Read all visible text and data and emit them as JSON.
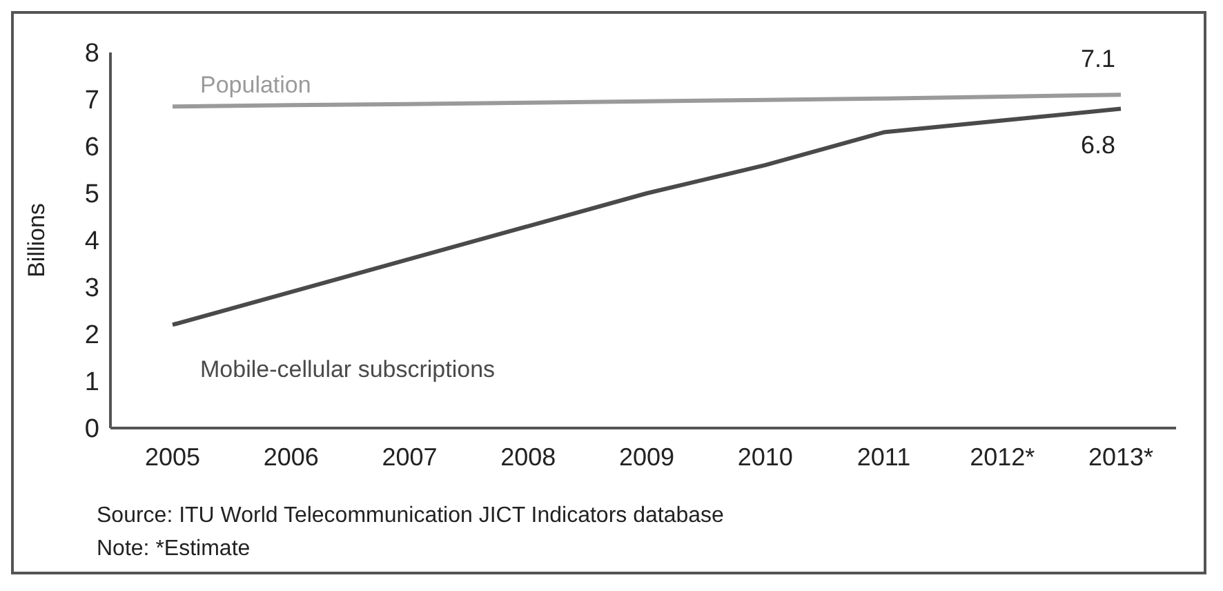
{
  "chart_data": {
    "type": "line",
    "ylabel": "Billions",
    "categories": [
      "2005",
      "2006",
      "2007",
      "2008",
      "2009",
      "2010",
      "2011",
      "2012*",
      "2013*"
    ],
    "series": [
      {
        "name": "Population",
        "color": "#9a9a9a",
        "values": [
          6.85,
          6.88,
          6.9,
          6.93,
          6.96,
          6.99,
          7.02,
          7.06,
          7.1
        ],
        "value_labels": [
          null,
          null,
          null,
          null,
          null,
          null,
          null,
          null,
          "7.1"
        ]
      },
      {
        "name": "Mobile-cellular subscriptions",
        "color": "#4a4a4a",
        "values": [
          2.2,
          2.9,
          3.6,
          4.3,
          5.0,
          5.6,
          6.3,
          6.55,
          6.8
        ],
        "value_labels": [
          null,
          null,
          null,
          null,
          null,
          null,
          null,
          null,
          "6.8"
        ]
      }
    ],
    "ylim": [
      0,
      8
    ],
    "yticks": [
      0,
      1,
      2,
      3,
      4,
      5,
      6,
      7,
      8
    ],
    "grid": false,
    "legend": false,
    "marker": "none",
    "line_style": "solid",
    "annotations": [
      "Source: ITU World Telecommunication JICT Indicators database",
      "Note: *Estimate"
    ]
  }
}
